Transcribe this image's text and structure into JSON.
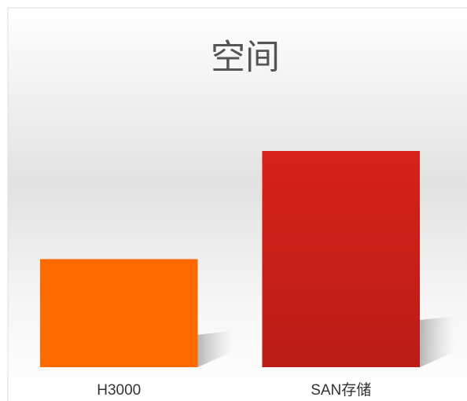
{
  "chart_data": {
    "type": "bar",
    "title": "空间",
    "categories": [
      "H3000",
      "SAN存储"
    ],
    "values": [
      50,
      100
    ],
    "colors": [
      "#ff6a00",
      "#d7221a"
    ],
    "ylim": [
      0,
      100
    ]
  }
}
